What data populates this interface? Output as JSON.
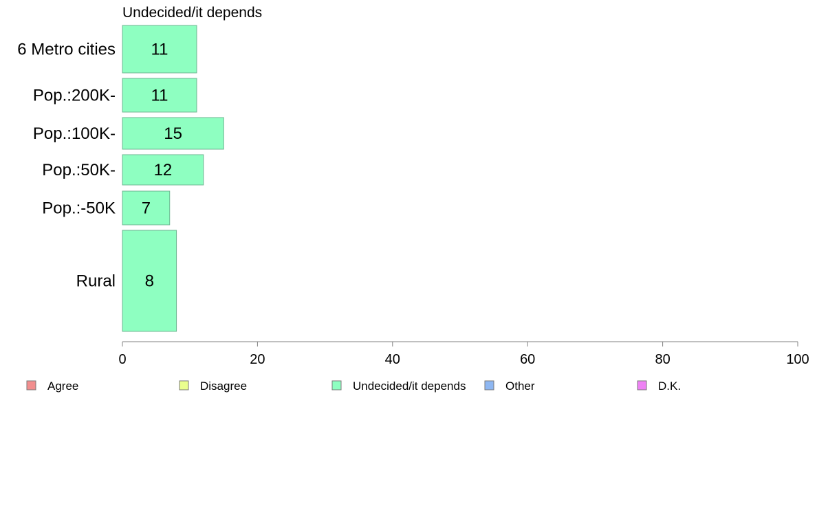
{
  "chart_data": {
    "type": "bar",
    "orientation": "horizontal",
    "title": "Undecided/it depends",
    "categories": [
      "6 Metro cities",
      "Pop.:200K-",
      "Pop.:100K-",
      "Pop.:50K-",
      "Pop.:-50K",
      "Rural"
    ],
    "series": [
      {
        "name": "Undecided/it depends",
        "values": [
          11,
          11,
          15,
          12,
          7,
          8
        ],
        "color": "#8effc1"
      }
    ],
    "xlim": [
      0,
      100
    ],
    "xticks": [
      0,
      20,
      40,
      60,
      80,
      100
    ],
    "grid": false,
    "legend": {
      "position": "bottom",
      "items": [
        {
          "label": "Agree",
          "color": "#f28e8e"
        },
        {
          "label": "Disagree",
          "color": "#eaff8e"
        },
        {
          "label": "Undecided/it depends",
          "color": "#8effc1"
        },
        {
          "label": "Other",
          "color": "#8eb7f2"
        },
        {
          "label": "D.K.",
          "color": "#ee82f4"
        }
      ]
    }
  }
}
